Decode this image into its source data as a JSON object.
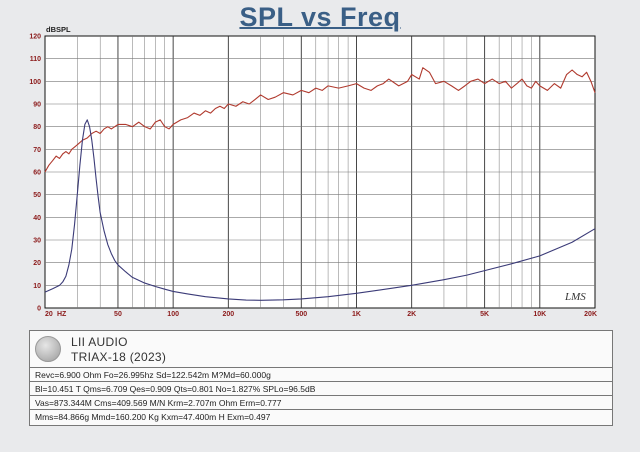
{
  "header": {
    "title": "SPL vs Freq"
  },
  "chart_data": {
    "type": "line",
    "title": "SPL vs Freq",
    "ylabel": "dBSPL",
    "xlabel": "",
    "x_scale": "log",
    "xlim": [
      20,
      20000
    ],
    "ylim": [
      0,
      120
    ],
    "grid": true,
    "y_ticks": [
      "0",
      "10",
      "20",
      "30",
      "40",
      "50",
      "60",
      "70",
      "80",
      "90",
      "100",
      "110",
      "120"
    ],
    "x_tick_labels": [
      {
        "x": 20,
        "label": "20"
      },
      {
        "x": 50,
        "label": "50"
      },
      {
        "x": 100,
        "label": "100"
      },
      {
        "x": 200,
        "label": "200"
      },
      {
        "x": 500,
        "label": "500"
      },
      {
        "x": 1000,
        "label": "1K"
      },
      {
        "x": 2000,
        "label": "2K"
      },
      {
        "x": 5000,
        "label": "5K"
      },
      {
        "x": 10000,
        "label": "10K"
      },
      {
        "x": 20000,
        "label": "20K"
      }
    ],
    "x_unit_label": "HZ",
    "watermark": "LMS",
    "series": [
      {
        "color": "#b03a2e",
        "points": [
          [
            20,
            60
          ],
          [
            21,
            63
          ],
          [
            22,
            65
          ],
          [
            23,
            67
          ],
          [
            24,
            66
          ],
          [
            25,
            68
          ],
          [
            26,
            69
          ],
          [
            27,
            68
          ],
          [
            28,
            70
          ],
          [
            29,
            71
          ],
          [
            30,
            72
          ],
          [
            32,
            74
          ],
          [
            34,
            75
          ],
          [
            36,
            77
          ],
          [
            38,
            78
          ],
          [
            40,
            77
          ],
          [
            42,
            79
          ],
          [
            44,
            80
          ],
          [
            46,
            79
          ],
          [
            48,
            80
          ],
          [
            50,
            81
          ],
          [
            55,
            81
          ],
          [
            60,
            80
          ],
          [
            65,
            82
          ],
          [
            70,
            80
          ],
          [
            75,
            79
          ],
          [
            80,
            82
          ],
          [
            85,
            83
          ],
          [
            90,
            80
          ],
          [
            95,
            79
          ],
          [
            100,
            81
          ],
          [
            110,
            83
          ],
          [
            120,
            84
          ],
          [
            130,
            86
          ],
          [
            140,
            85
          ],
          [
            150,
            87
          ],
          [
            160,
            86
          ],
          [
            170,
            88
          ],
          [
            180,
            89
          ],
          [
            190,
            88
          ],
          [
            200,
            90
          ],
          [
            220,
            89
          ],
          [
            240,
            91
          ],
          [
            260,
            90
          ],
          [
            280,
            92
          ],
          [
            300,
            94
          ],
          [
            330,
            92
          ],
          [
            360,
            93
          ],
          [
            400,
            95
          ],
          [
            450,
            94
          ],
          [
            500,
            96
          ],
          [
            550,
            95
          ],
          [
            600,
            97
          ],
          [
            650,
            96
          ],
          [
            700,
            98
          ],
          [
            800,
            97
          ],
          [
            900,
            98
          ],
          [
            1000,
            99
          ],
          [
            1100,
            97
          ],
          [
            1200,
            96
          ],
          [
            1300,
            98
          ],
          [
            1400,
            99
          ],
          [
            1500,
            101
          ],
          [
            1700,
            98
          ],
          [
            1900,
            100
          ],
          [
            2000,
            103
          ],
          [
            2200,
            101
          ],
          [
            2300,
            106
          ],
          [
            2500,
            104
          ],
          [
            2700,
            99
          ],
          [
            3000,
            100
          ],
          [
            3300,
            98
          ],
          [
            3600,
            96
          ],
          [
            3900,
            98
          ],
          [
            4200,
            100
          ],
          [
            4600,
            101
          ],
          [
            5000,
            99
          ],
          [
            5500,
            101
          ],
          [
            6000,
            99
          ],
          [
            6500,
            100
          ],
          [
            7000,
            97
          ],
          [
            7500,
            99
          ],
          [
            8000,
            101
          ],
          [
            8500,
            98
          ],
          [
            9000,
            97
          ],
          [
            9500,
            100
          ],
          [
            10000,
            98
          ],
          [
            11000,
            96
          ],
          [
            12000,
            99
          ],
          [
            13000,
            97
          ],
          [
            14000,
            103
          ],
          [
            15000,
            105
          ],
          [
            16000,
            103
          ],
          [
            17000,
            102
          ],
          [
            18000,
            104
          ],
          [
            19000,
            100
          ],
          [
            20000,
            95
          ]
        ]
      },
      {
        "color": "#3b3b78",
        "points": [
          [
            20,
            7
          ],
          [
            22,
            8.5
          ],
          [
            24,
            10
          ],
          [
            25,
            11.5
          ],
          [
            26,
            14
          ],
          [
            27,
            19
          ],
          [
            28,
            26
          ],
          [
            29,
            37
          ],
          [
            30,
            50
          ],
          [
            31,
            63
          ],
          [
            32,
            74
          ],
          [
            33,
            81
          ],
          [
            34,
            83
          ],
          [
            35,
            80
          ],
          [
            36,
            74
          ],
          [
            37,
            66
          ],
          [
            38,
            57
          ],
          [
            39,
            49
          ],
          [
            40,
            42
          ],
          [
            42,
            34
          ],
          [
            44,
            28
          ],
          [
            46,
            24
          ],
          [
            48,
            21
          ],
          [
            50,
            19
          ],
          [
            55,
            16
          ],
          [
            60,
            13.5
          ],
          [
            70,
            11
          ],
          [
            80,
            9.5
          ],
          [
            90,
            8.3
          ],
          [
            100,
            7.3
          ],
          [
            120,
            6.2
          ],
          [
            150,
            5
          ],
          [
            200,
            4
          ],
          [
            250,
            3.5
          ],
          [
            300,
            3.4
          ],
          [
            400,
            3.6
          ],
          [
            500,
            4
          ],
          [
            700,
            5
          ],
          [
            1000,
            6.5
          ],
          [
            1500,
            8.5
          ],
          [
            2000,
            10
          ],
          [
            3000,
            12.5
          ],
          [
            4000,
            14.5
          ],
          [
            5000,
            16.5
          ],
          [
            7000,
            19.5
          ],
          [
            10000,
            23
          ],
          [
            15000,
            29
          ],
          [
            20000,
            35
          ]
        ]
      }
    ]
  },
  "info": {
    "brand": "LII AUDIO",
    "model": "TRIAX-18 (2023)",
    "params": [
      "Revc=6.900 Ohm Fo=26.995hz Sd=122.542m M?Md=60.000g",
      "Bl=10.451 T Qms=6.709 Qes=0.909 Qts=0.801 No=1.827% SPLo=96.5dB",
      "Vas=873.344M Cms=409.569 M/N Krm=2.707m Ohm Erm=0.777",
      "Mms=84.866g Mmd=160.200 Kg Kxm=47.400m H Exm=0.497"
    ]
  }
}
